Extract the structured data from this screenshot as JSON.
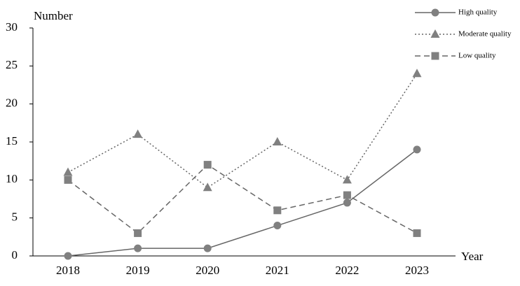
{
  "chart_data": {
    "type": "line",
    "y_label": "Number",
    "x_label": "Year",
    "categories": [
      "2018",
      "2019",
      "2020",
      "2021",
      "2022",
      "2023"
    ],
    "ylim": [
      0,
      30
    ],
    "yticks": [
      0,
      5,
      10,
      15,
      20,
      25,
      30
    ],
    "grid": false,
    "legend": "top-right",
    "series": [
      {
        "name": "High quality",
        "color": "#808080",
        "dash": "solid",
        "marker": "circle",
        "values": [
          0,
          1,
          1,
          4,
          7,
          14
        ]
      },
      {
        "name": "Moderate quality",
        "color": "#808080",
        "dash": "dotted",
        "marker": "triangle",
        "values": [
          11,
          16,
          9,
          15,
          10,
          24
        ]
      },
      {
        "name": "Low quality",
        "color": "#808080",
        "dash": "dashed",
        "marker": "square",
        "values": [
          10,
          3,
          12,
          6,
          8,
          3
        ]
      }
    ]
  }
}
